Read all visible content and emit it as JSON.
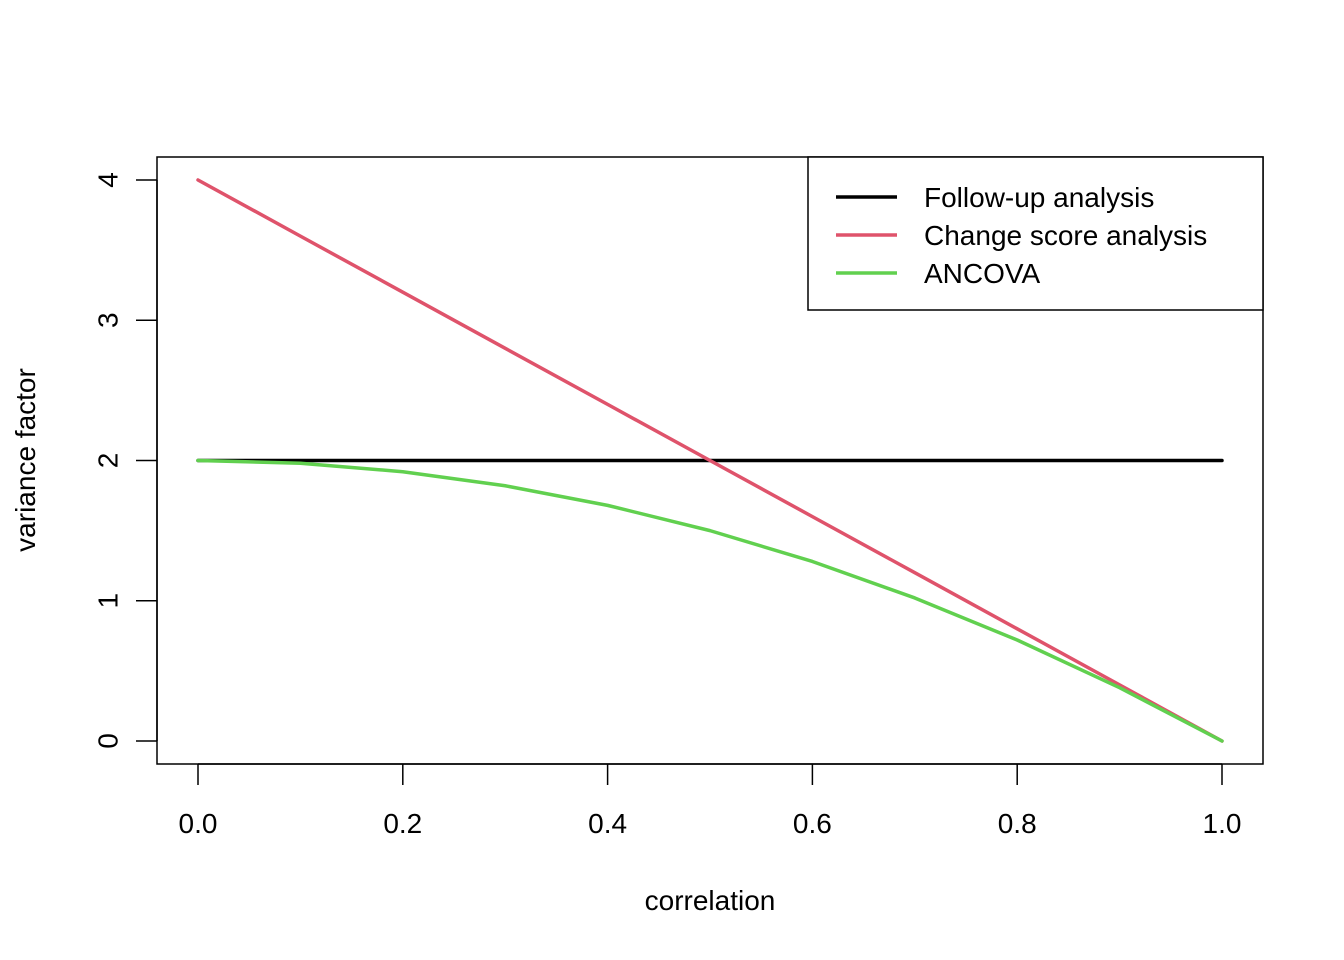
{
  "chart_data": {
    "type": "line",
    "title": "",
    "xlabel": "correlation",
    "ylabel": "variance factor",
    "xlim": [
      0,
      1
    ],
    "ylim": [
      0,
      4
    ],
    "x_ticks": [
      "0.0",
      "0.2",
      "0.4",
      "0.6",
      "0.8",
      "1.0"
    ],
    "y_ticks": [
      "0",
      "1",
      "2",
      "3",
      "4"
    ],
    "legend_position": "top-right",
    "grid": false,
    "x": [
      0.0,
      0.1,
      0.2,
      0.3,
      0.4,
      0.5,
      0.6,
      0.7,
      0.8,
      0.9,
      1.0
    ],
    "series": [
      {
        "name": "Follow-up analysis",
        "color": "#000000",
        "values": [
          2,
          2,
          2,
          2,
          2,
          2,
          2,
          2,
          2,
          2,
          2
        ]
      },
      {
        "name": "Change score analysis",
        "color": "#DF536B",
        "values": [
          4.0,
          3.6,
          3.2,
          2.8,
          2.4,
          2.0,
          1.6,
          1.2,
          0.8,
          0.4,
          0.0
        ]
      },
      {
        "name": "ANCOVA",
        "color": "#61D04F",
        "values": [
          2.0,
          1.98,
          1.92,
          1.82,
          1.68,
          1.5,
          1.28,
          1.02,
          0.72,
          0.38,
          0.0
        ]
      }
    ]
  }
}
